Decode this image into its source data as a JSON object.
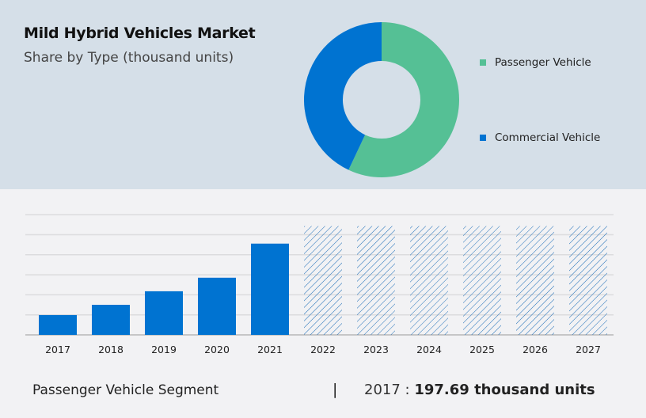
{
  "title": "Mild Hybrid Vehicles Market",
  "subtitle": "Share by Type (thousand units)",
  "chart_data": [
    {
      "type": "pie",
      "donut": true,
      "labels": [
        "Passenger Vehicle",
        "Commercial Vehicle"
      ],
      "values": [
        57,
        43
      ],
      "colors": [
        "#55c095",
        "#0073d1"
      ],
      "legend": "right"
    },
    {
      "type": "bar",
      "categories": [
        "2017",
        "2018",
        "2019",
        "2020",
        "2021",
        "2022",
        "2023",
        "2024",
        "2025",
        "2026",
        "2027"
      ],
      "values": [
        197.69,
        300,
        435,
        570,
        910,
        1085,
        1085,
        1085,
        1085,
        1085,
        1085
      ],
      "forecast_from": "2022",
      "color": "#0073d1",
      "grid": true,
      "ylim": [
        0,
        1200
      ]
    }
  ],
  "footer": {
    "segment": "Passenger Vehicle Segment",
    "separator": "|",
    "year": "2017 :",
    "value": "197.69 thousand units"
  }
}
